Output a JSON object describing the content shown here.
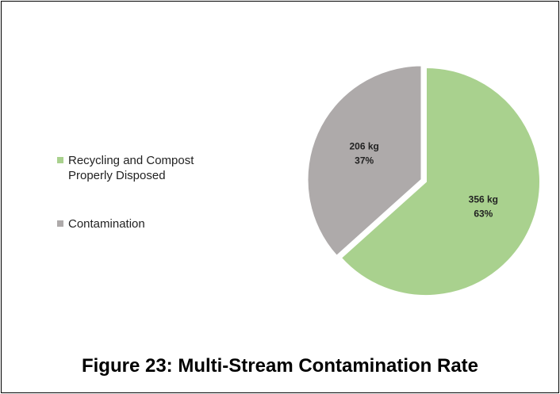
{
  "chart_data": {
    "type": "pie",
    "title": "Figure 23: Multi-Stream Contamination Rate",
    "categories": [
      "Recycling and Compost Properly Disposed",
      "Contamination"
    ],
    "values": [
      356,
      206
    ],
    "value_labels": [
      "356 kg",
      "206 kg"
    ],
    "percentage_labels": [
      "63%",
      "37%"
    ],
    "colors": [
      "#a9d18e",
      "#aeaaaa"
    ],
    "legend": "left"
  }
}
